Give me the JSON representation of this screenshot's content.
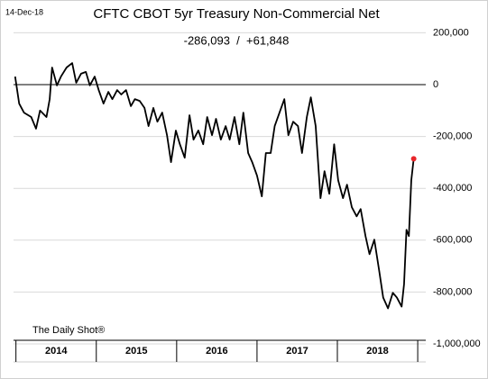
{
  "chart_data": {
    "type": "line",
    "title": "CFTC CBOT 5yr Treasury Non-Commercial Net",
    "subtitle": "-286,093  /  +61,848",
    "date_label": "14-Dec-18",
    "source": "The Daily Shot®",
    "year_labels": [
      "2014",
      "2015",
      "2016",
      "2017",
      "2018"
    ],
    "xlim": [
      2013.97,
      2019.1
    ],
    "ylim": [
      -1000000,
      250000
    ],
    "yticks": [
      {
        "value": -1000000,
        "label": "-1,000,000"
      },
      {
        "value": -800000,
        "label": "-800,000"
      },
      {
        "value": -600000,
        "label": "-600,000"
      },
      {
        "value": -400000,
        "label": "-400,000"
      },
      {
        "value": -200000,
        "label": "-200,000"
      },
      0,
      {
        "value": 200000,
        "label": "200,000"
      }
    ],
    "grid": true,
    "zero_line": true,
    "highlight_last": true,
    "highlight_color": "#e8262a",
    "series": [
      {
        "name": "Non-Commercial Net",
        "color": "#000000",
        "x": [
          2013.99,
          2014.04,
          2014.1,
          2014.19,
          2014.25,
          2014.3,
          2014.38,
          2014.42,
          2014.45,
          2014.51,
          2014.56,
          2014.63,
          2014.7,
          2014.75,
          2014.81,
          2014.87,
          2014.92,
          2014.98,
          2015.03,
          2015.09,
          2015.15,
          2015.2,
          2015.26,
          2015.31,
          2015.37,
          2015.43,
          2015.48,
          2015.54,
          2015.6,
          2015.65,
          2015.71,
          2015.76,
          2015.82,
          2015.88,
          2015.93,
          2015.99,
          2016.04,
          2016.1,
          2016.16,
          2016.21,
          2016.27,
          2016.33,
          2016.38,
          2016.44,
          2016.49,
          2016.55,
          2016.61,
          2016.66,
          2016.72,
          2016.78,
          2016.83,
          2016.89,
          2016.94,
          2017.0,
          2017.06,
          2017.11,
          2017.17,
          2017.22,
          2017.28,
          2017.34,
          2017.39,
          2017.45,
          2017.51,
          2017.56,
          2017.62,
          2017.67,
          2017.73,
          2017.79,
          2017.84,
          2017.9,
          2017.96,
          2018.01,
          2018.07,
          2018.12,
          2018.18,
          2018.24,
          2018.29,
          2018.35,
          2018.4,
          2018.46,
          2018.52,
          2018.57,
          2018.63,
          2018.69,
          2018.74,
          2018.8,
          2018.83,
          2018.86,
          2018.89,
          2018.92,
          2018.95
        ],
        "values": [
          31000,
          -73000,
          -108000,
          -125000,
          -170000,
          -100000,
          -125000,
          -56000,
          66000,
          -3000,
          31000,
          66000,
          83000,
          7000,
          42000,
          49000,
          -3000,
          31000,
          -21000,
          -73000,
          -28000,
          -56000,
          -21000,
          -38000,
          -21000,
          -83000,
          -56000,
          -63000,
          -90000,
          -160000,
          -90000,
          -143000,
          -108000,
          -195000,
          -299000,
          -177000,
          -230000,
          -282000,
          -118000,
          -212000,
          -177000,
          -230000,
          -125000,
          -195000,
          -132000,
          -212000,
          -160000,
          -212000,
          -125000,
          -230000,
          -108000,
          -264000,
          -299000,
          -351000,
          -431000,
          -264000,
          -264000,
          -160000,
          -108000,
          -56000,
          -195000,
          -143000,
          -160000,
          -264000,
          -125000,
          -49000,
          -160000,
          -438000,
          -334000,
          -421000,
          -230000,
          -369000,
          -438000,
          -386000,
          -473000,
          -508000,
          -480000,
          -584000,
          -654000,
          -598000,
          -717000,
          -821000,
          -863000,
          -803000,
          -821000,
          -856000,
          -769000,
          -560000,
          -584000,
          -369000,
          -286093
        ]
      }
    ]
  }
}
